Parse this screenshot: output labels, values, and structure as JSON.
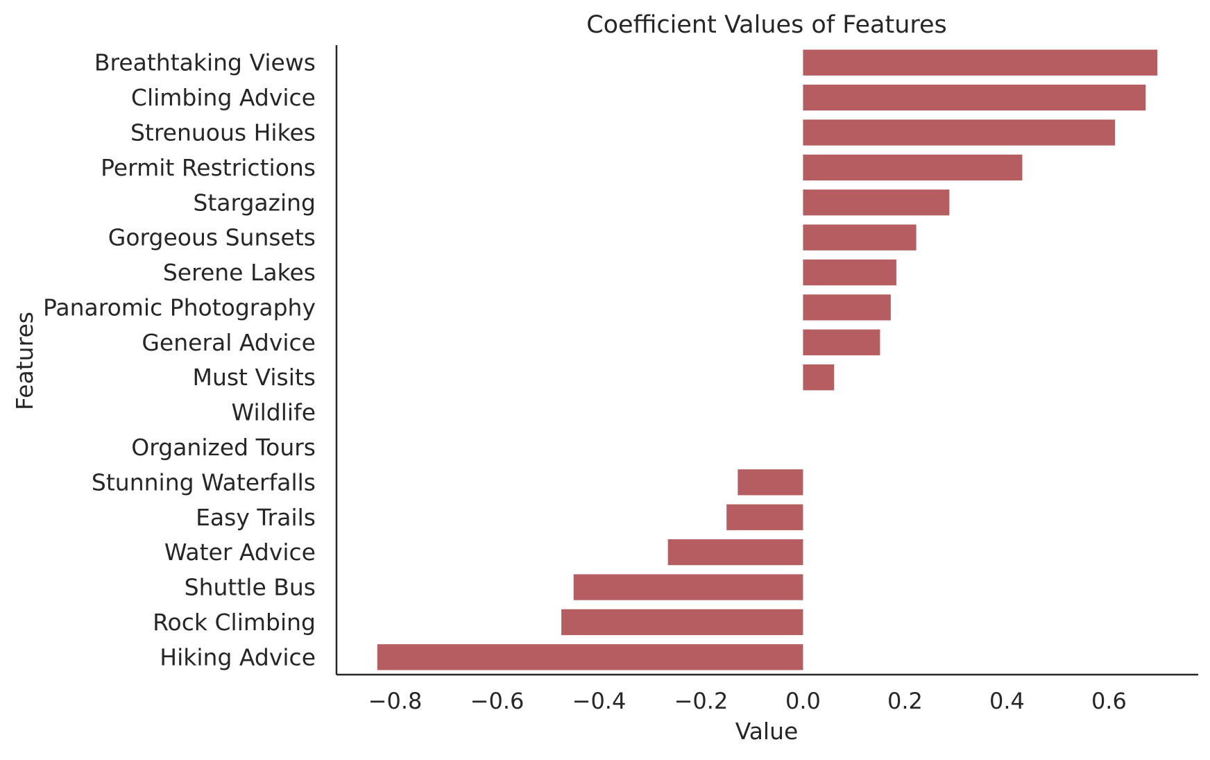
{
  "chart_data": {
    "type": "bar",
    "orientation": "horizontal",
    "title": "Coefficient Values of Features",
    "xlabel": "Value",
    "ylabel": "Features",
    "categories": [
      "Breathtaking Views",
      "Climbing Advice",
      "Strenuous Hikes",
      "Permit Restrictions",
      "Stargazing",
      "Gorgeous Sunsets",
      "Serene Lakes",
      "Panaromic Photography",
      "General Advice",
      "Must Visits",
      "Wildlife",
      "Organized Tours",
      "Stunning Waterfalls",
      "Easy Trails",
      "Water Advice",
      "Shuttle Bus",
      "Rock Climbing",
      "Hiking Advice"
    ],
    "values": [
      0.695,
      0.672,
      0.612,
      0.43,
      0.287,
      0.222,
      0.183,
      0.172,
      0.151,
      0.061,
      0.0,
      0.0,
      -0.128,
      -0.15,
      -0.265,
      -0.45,
      -0.474,
      -0.835
    ],
    "xlim": [
      -0.915,
      0.775
    ],
    "xticks": [
      -0.8,
      -0.6,
      -0.4,
      -0.2,
      0.0,
      0.2,
      0.4,
      0.6
    ],
    "xtick_labels": [
      "−0.8",
      "−0.6",
      "−0.4",
      "−0.2",
      "0.0",
      "0.2",
      "0.4",
      "0.6"
    ],
    "bar_color": "#b55d60",
    "grid": false,
    "legend": "none"
  }
}
